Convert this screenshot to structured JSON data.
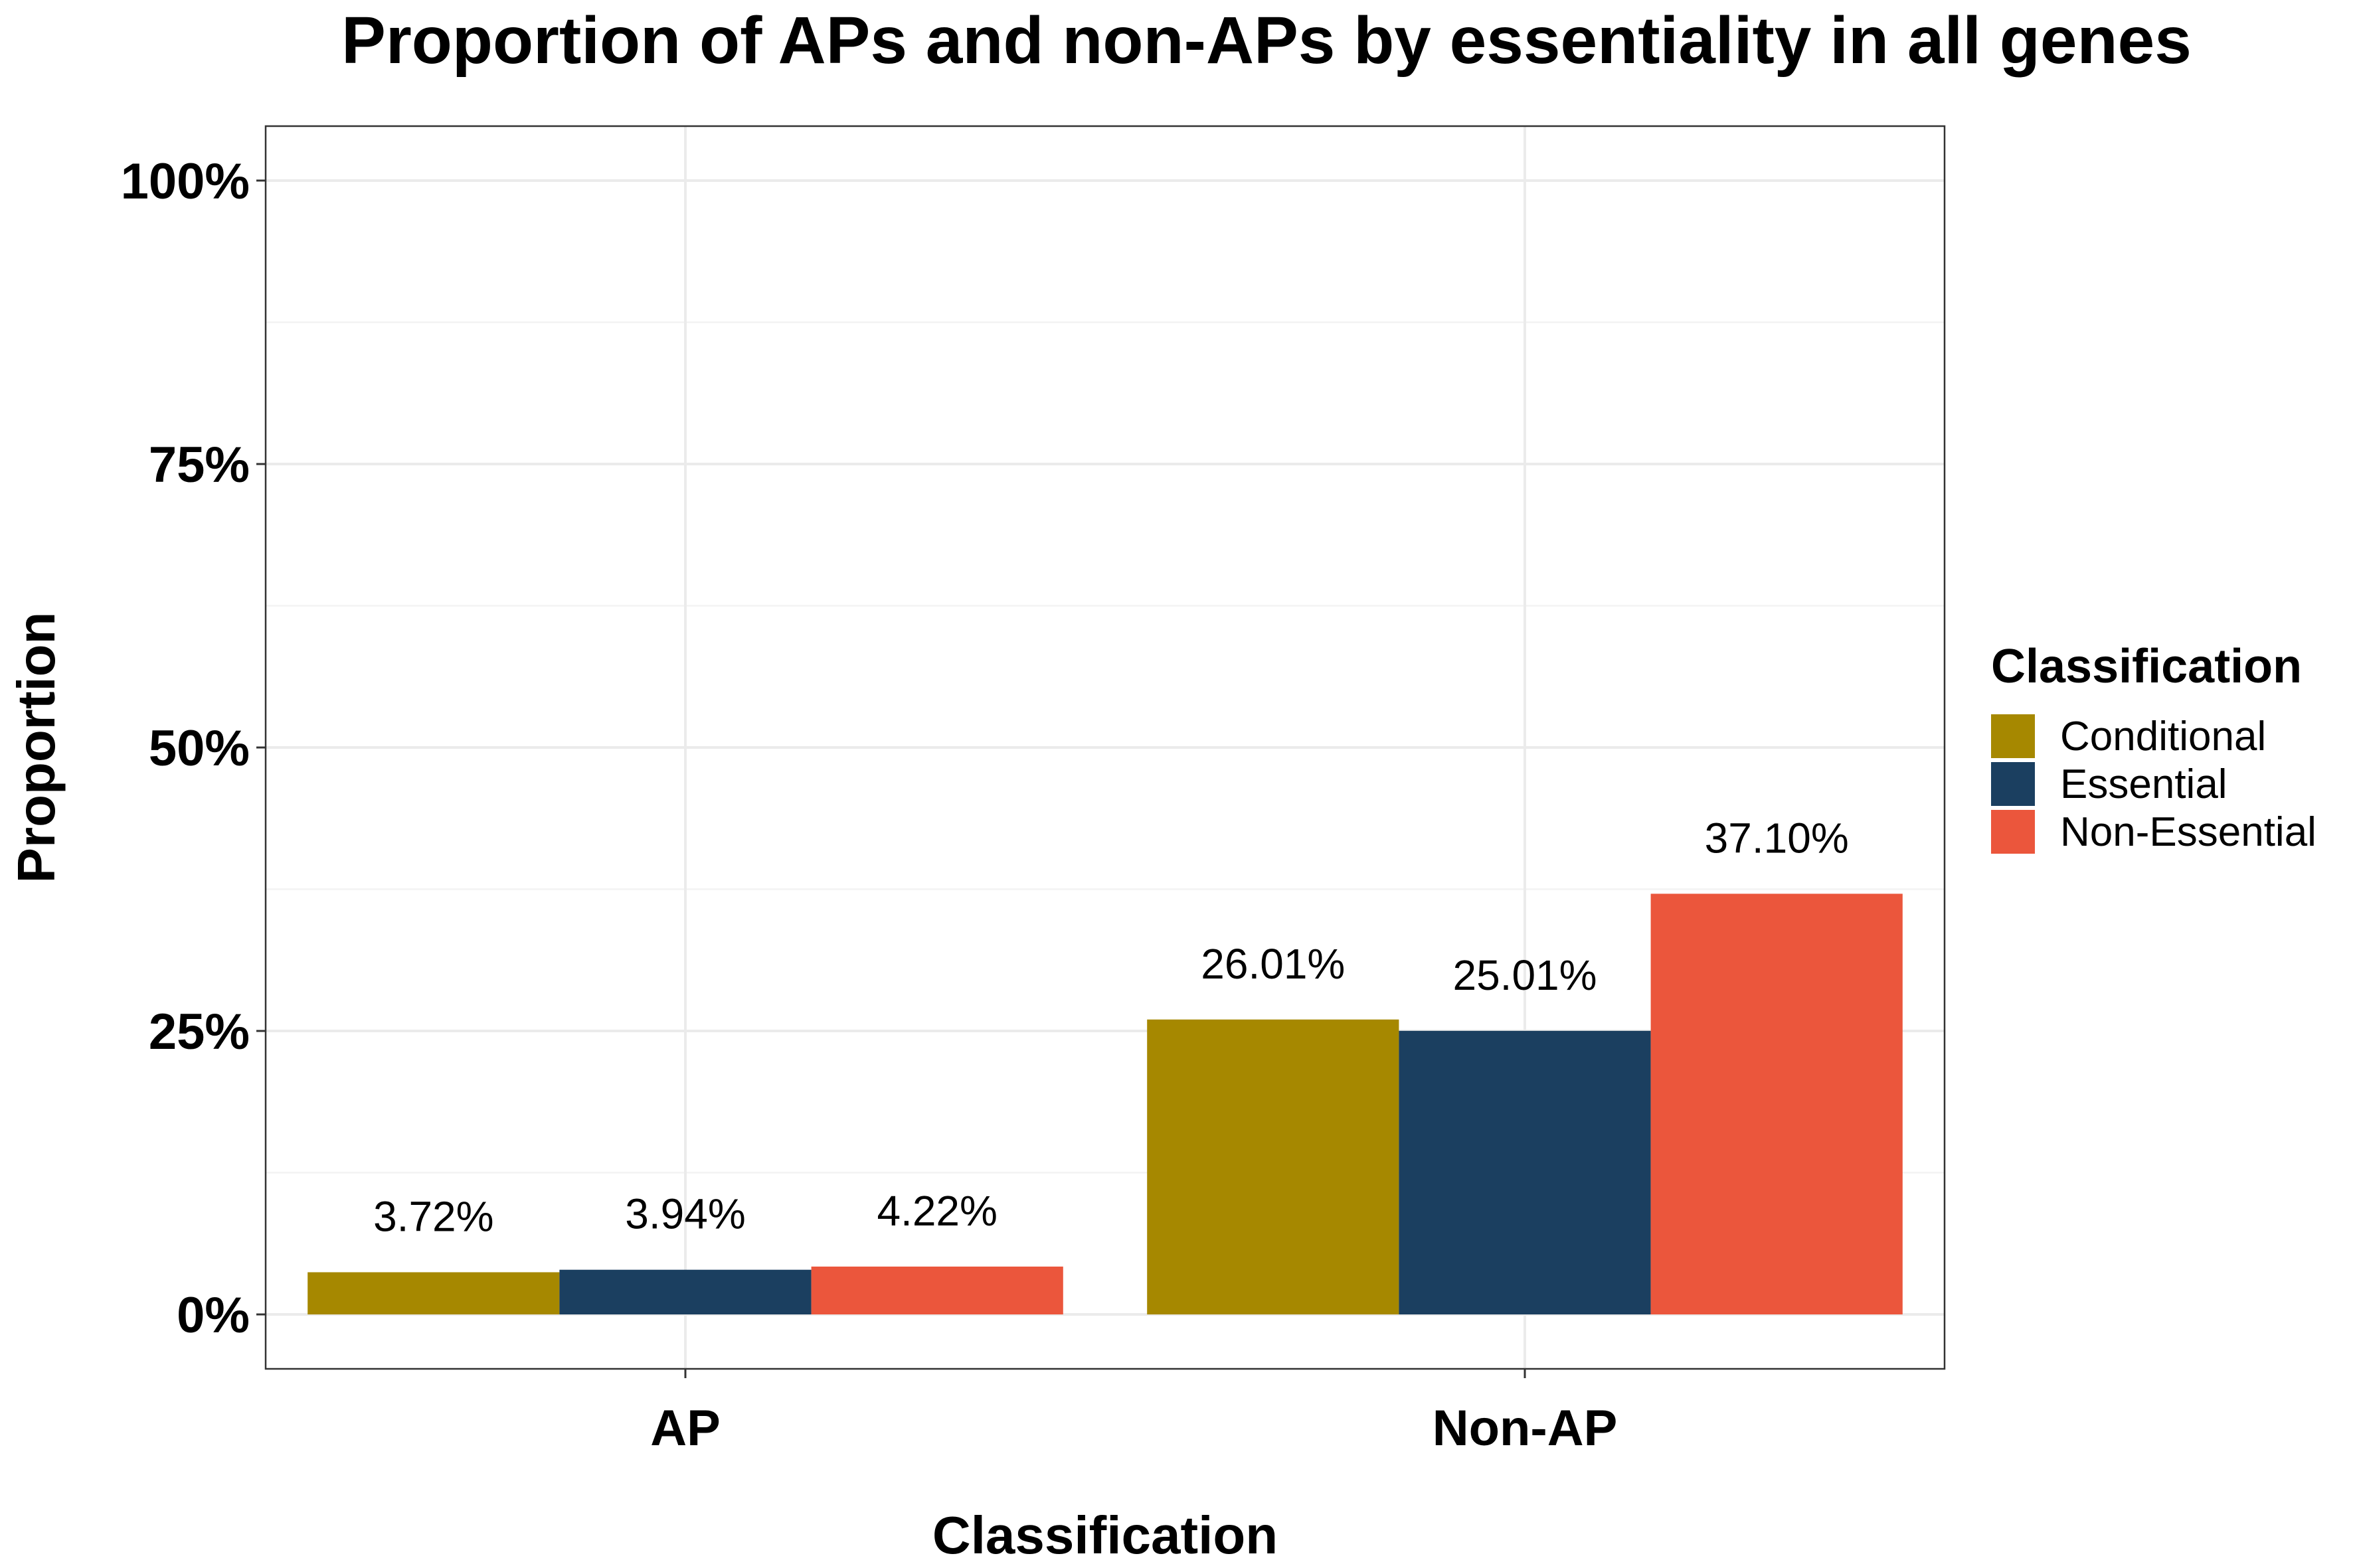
{
  "chart_data": {
    "type": "bar",
    "title": "Proportion of APs and non-APs by essentiality in all genes",
    "xlabel": "Classification",
    "ylabel": "Proportion",
    "categories": [
      "AP",
      "Non-AP"
    ],
    "series": [
      {
        "name": "Conditional",
        "values": [
          3.72,
          26.01
        ],
        "labels": [
          "3.72%",
          "26.01%"
        ],
        "color": "#A68800"
      },
      {
        "name": "Essential",
        "values": [
          3.94,
          25.01
        ],
        "labels": [
          "3.94%",
          "25.01%"
        ],
        "color": "#1B3F60"
      },
      {
        "name": "Non-Essential",
        "values": [
          4.22,
          37.1
        ],
        "labels": [
          "4.22%",
          "37.10%"
        ],
        "color": "#EB563C"
      }
    ],
    "y_ticks": [
      {
        "value": 0,
        "label": "0%"
      },
      {
        "value": 25,
        "label": "25%"
      },
      {
        "value": 50,
        "label": "50%"
      },
      {
        "value": 75,
        "label": "75%"
      },
      {
        "value": 100,
        "label": "100%"
      }
    ],
    "ylim": [
      -4.8,
      104.8
    ],
    "grid": true,
    "legend": {
      "title": "Classification",
      "position": "right"
    }
  }
}
